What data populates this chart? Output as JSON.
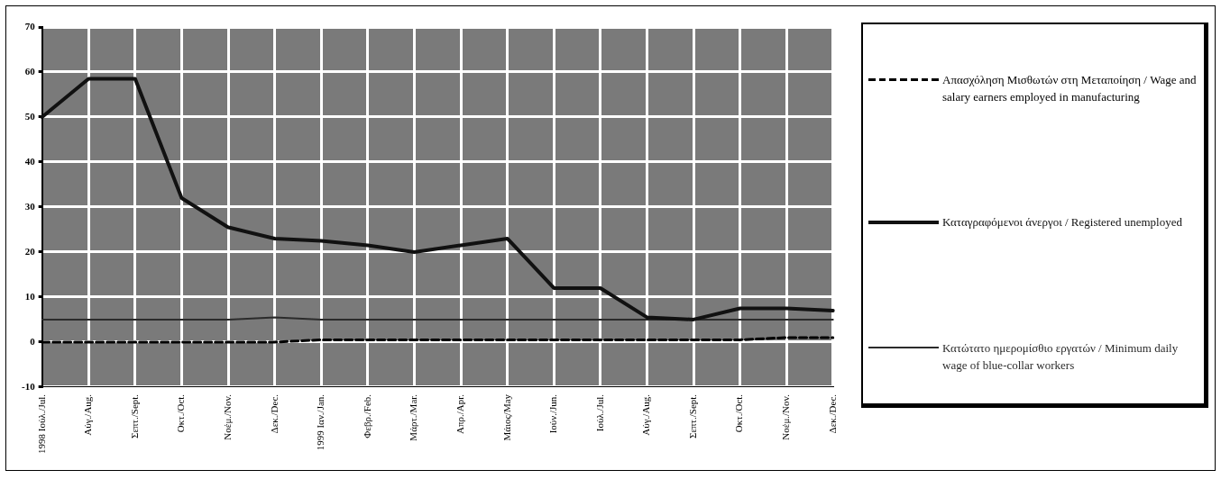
{
  "chart_data": {
    "type": "line",
    "categories": [
      "1998 Ιούλ./Jul.",
      "Αύγ./Aug.",
      "Σεπτ./Sept.",
      "Οκτ./Oct.",
      "Νοέμ./Nov.",
      "Δεκ./Dec.",
      "1999 Ιαν./Jan.",
      "Φεβρ./Feb.",
      "Μάρτ./Mar.",
      "Απρ./Apr.",
      "Μάιος/May",
      "Ιούν./Jun.",
      "Ιούλ./Jul.",
      "Αύγ./Aug.",
      "Σεπτ./Sept.",
      "Οκτ./Oct.",
      "Νοέμ./Nov.",
      "Δεκ./Dec."
    ],
    "series": [
      {
        "name": "Απασχόληση Μισθωτών στη Μεταποίηση / Wage and salary earners employed in manufacturing",
        "color": "#000000",
        "line_style": "dashed",
        "values": [
          0,
          0,
          0,
          0,
          0,
          0,
          0.5,
          0.5,
          0.5,
          0.5,
          0.5,
          0.5,
          0.5,
          0.5,
          0.5,
          0.5,
          1,
          1
        ]
      },
      {
        "name": "Καταγραφόμενοι άνεργοι / Registered unemployed",
        "color": "#111111",
        "values": [
          50,
          58.5,
          58.5,
          32,
          25.5,
          23,
          22.5,
          21.5,
          20,
          21.5,
          23,
          12,
          12,
          5.5,
          5,
          7.5,
          7.5,
          7
        ]
      },
      {
        "name": "Κατώτατο ημερομίσθιο εργατών / Minimum daily wage of blue-collar workers",
        "color": "#2b2b2b",
        "values": [
          5,
          5,
          5,
          5,
          5,
          5.5,
          5,
          5,
          5,
          5,
          5,
          5,
          5,
          5,
          5,
          5,
          5,
          5
        ]
      }
    ],
    "ylim": [
      -10,
      70
    ],
    "yticks": [
      -10,
      0,
      10,
      20,
      30,
      40,
      50,
      60,
      70
    ],
    "grid": true,
    "legend": "right",
    "marker": "none",
    "line_style": "solid"
  }
}
